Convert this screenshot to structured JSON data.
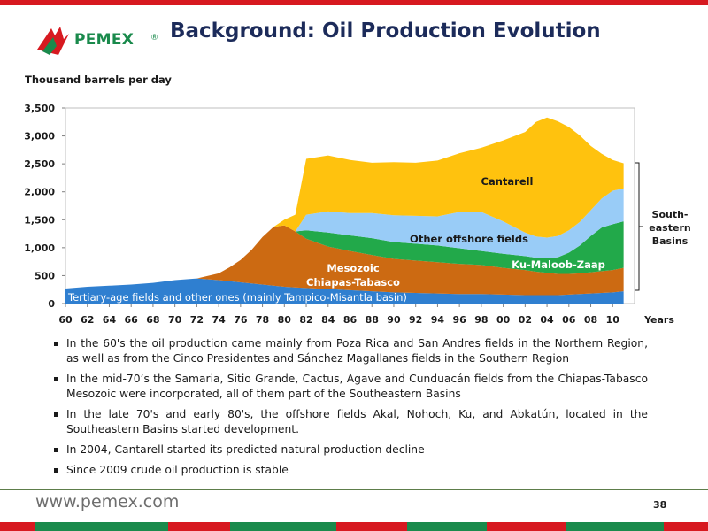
{
  "header": {
    "logo_text": "PEMEX",
    "logo_mark": "®",
    "title": "Background: Oil Production Evolution"
  },
  "colors": {
    "red": "#d71920",
    "navy": "#1c2b5a",
    "green_logo": "#1a8a4c",
    "tertiary": "#2f7fd0",
    "mesozoic": "#cc6a12",
    "ku_maloob": "#22a94a",
    "other_offshore": "#99ccf7",
    "cantarell": "#ffc20e"
  },
  "chart_data": {
    "type": "area",
    "stacked": true,
    "ylabel": "Thousand barrels per day",
    "xlabel": "Years",
    "ylim": [
      0,
      3500
    ],
    "yticks": [
      "0",
      "500",
      "1,000",
      "1,500",
      "2,000",
      "2,500",
      "3,000",
      "3,500"
    ],
    "xticks": [
      "60",
      "62",
      "64",
      "66",
      "68",
      "70",
      "72",
      "74",
      "76",
      "78",
      "80",
      "82",
      "84",
      "86",
      "88",
      "90",
      "92",
      "94",
      "96",
      "98",
      "00",
      "02",
      "04",
      "06",
      "08",
      "10"
    ],
    "grid": false,
    "x": [
      1960,
      1962,
      1964,
      1966,
      1968,
      1970,
      1972,
      1974,
      1975,
      1976,
      1977,
      1978,
      1979,
      1980,
      1981,
      1982,
      1984,
      1986,
      1988,
      1990,
      1992,
      1994,
      1996,
      1998,
      2000,
      2002,
      2003,
      2004,
      2005,
      2006,
      2007,
      2008,
      2009,
      2010,
      2011
    ],
    "series": [
      {
        "name": "Tertiary-age fields and other ones (mainly Tampico-Misantla basin)",
        "color": "#2f7fd0",
        "values": [
          270,
          300,
          320,
          340,
          370,
          420,
          450,
          420,
          400,
          380,
          360,
          340,
          320,
          300,
          290,
          280,
          260,
          240,
          220,
          200,
          190,
          180,
          170,
          170,
          160,
          150,
          150,
          150,
          150,
          160,
          170,
          180,
          190,
          200,
          220
        ]
      },
      {
        "name": "Mesozoic Chiapas-Tabasco",
        "color": "#cc6a12",
        "values": [
          0,
          0,
          0,
          0,
          0,
          0,
          0,
          120,
          250,
          400,
          600,
          850,
          1050,
          1100,
          1000,
          880,
          760,
          700,
          650,
          600,
          580,
          560,
          540,
          520,
          480,
          450,
          420,
          400,
          380,
          370,
          370,
          380,
          390,
          400,
          420
        ]
      },
      {
        "name": "Ku-Maloob-Zaap",
        "color": "#22a94a",
        "values": [
          0,
          0,
          0,
          0,
          0,
          0,
          0,
          0,
          0,
          0,
          0,
          0,
          0,
          0,
          0,
          150,
          250,
          280,
          300,
          300,
          300,
          300,
          280,
          250,
          250,
          250,
          250,
          260,
          300,
          380,
          500,
          650,
          780,
          820,
          830
        ]
      },
      {
        "name": "Other offshore fields",
        "color": "#99ccf7",
        "values": [
          0,
          0,
          0,
          0,
          0,
          0,
          0,
          0,
          0,
          0,
          0,
          0,
          0,
          0,
          0,
          280,
          380,
          400,
          450,
          480,
          500,
          520,
          650,
          700,
          580,
          420,
          380,
          370,
          380,
          400,
          420,
          460,
          520,
          600,
          590
        ]
      },
      {
        "name": "Cantarell",
        "color": "#ffc20e",
        "values": [
          0,
          0,
          0,
          0,
          0,
          0,
          0,
          0,
          0,
          0,
          0,
          0,
          0,
          100,
          300,
          1000,
          1000,
          950,
          900,
          950,
          950,
          1000,
          1050,
          1150,
          1450,
          1800,
          2050,
          2150,
          2050,
          1850,
          1550,
          1150,
          800,
          550,
          450
        ]
      }
    ],
    "annotations": {
      "cantarell": "Cantarell",
      "other_offshore": "Other offshore fields",
      "ku_maloob": "Ku-Maloob-Zaap",
      "mesozoic_line1": "Mesozoic",
      "mesozoic_line2": "Chiapas-Tabasco",
      "tertiary": "Tertiary-age fields and other ones (mainly Tampico-Misantla basin)",
      "brace_line1": "South-",
      "brace_line2": "eastern",
      "brace_line3": "Basins"
    }
  },
  "bullets": [
    "In the 60's the oil production came mainly from Poza Rica and San Andres fields in the Northern Region, as well as from the Cinco Presidentes and Sánchez Magallanes fields in the Southern Region",
    "In the mid-70’s the Samaria, Sitio Grande, Cactus, Agave and Cunduacán fields from the Chiapas-Tabasco Mesozoic were incorporated, all of them part of the Southeastern Basins",
    "In the late 70's and early 80's, the offshore fields Akal, Nohoch, Ku, and Abkatún, located in the Southeastern Basins started development.",
    "In 2004, Cantarell started its predicted natural production decline",
    "Since 2009 crude oil production is stable"
  ],
  "footer": {
    "url": "www.pemex.com",
    "page_number": "38"
  }
}
